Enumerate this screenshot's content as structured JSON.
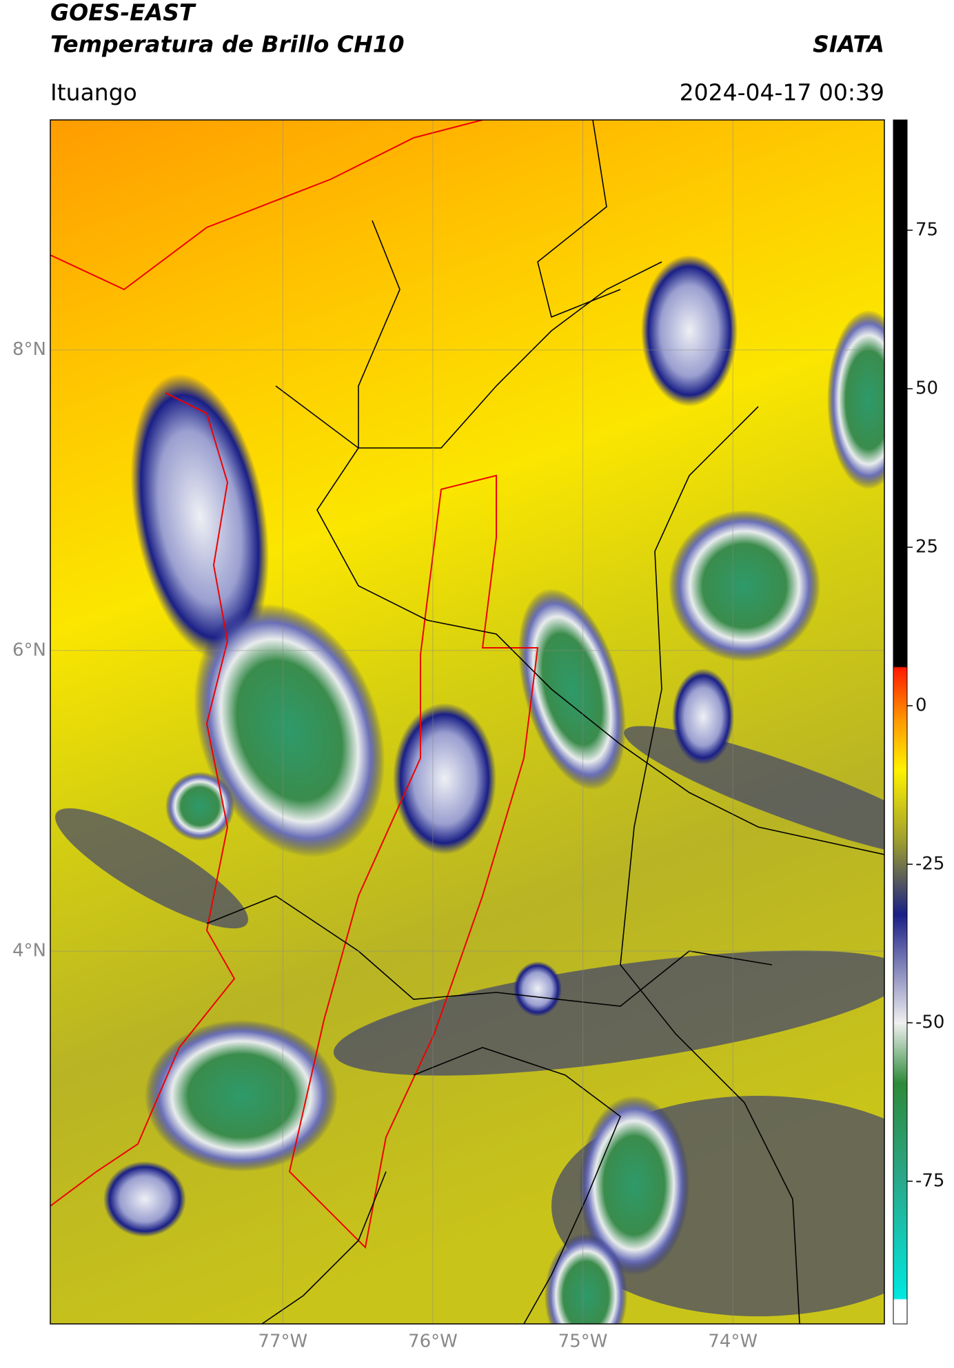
{
  "header": {
    "title": "GOES-EAST",
    "subtitle": "Temperatura de Brillo CH10",
    "brand": "SIATA",
    "location": "Ituango",
    "timestamp": "2024-04-17 00:39"
  },
  "map": {
    "xlim": [
      -78.55,
      -72.99
    ],
    "ylim": [
      1.52,
      9.53
    ],
    "xticks": [
      {
        "value": -77,
        "label": "77°W"
      },
      {
        "value": -76,
        "label": "76°W"
      },
      {
        "value": -75,
        "label": "75°W"
      },
      {
        "value": -74,
        "label": "74°W"
      }
    ],
    "yticks": [
      {
        "value": 8,
        "label": "8°N"
      },
      {
        "value": 6,
        "label": "6°N"
      },
      {
        "value": 4,
        "label": "4°N"
      }
    ],
    "grid": true
  },
  "colorbar": {
    "lim": [
      -97.5,
      92.4
    ],
    "ticks": [
      75,
      50,
      25,
      0,
      -25,
      -50,
      -75
    ]
  }
}
